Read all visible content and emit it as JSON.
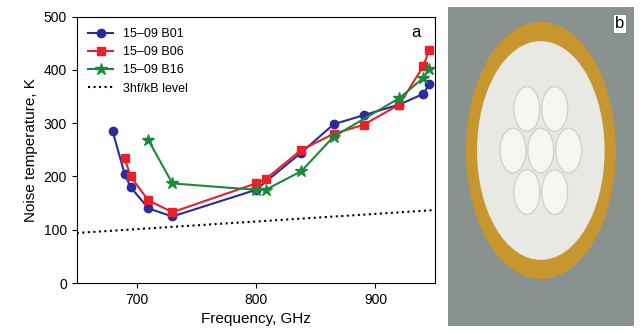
{
  "chart_data": {
    "type": "line",
    "annotations": [
      "a"
    ],
    "x_label": "Frequency, GHz",
    "y_label": "Noise temperature, K",
    "xlim": [
      650,
      950
    ],
    "xticks": [
      700,
      800,
      900
    ],
    "ylim": [
      0,
      500
    ],
    "yticks": [
      0,
      100,
      200,
      300,
      400,
      500
    ],
    "legend": "upper left",
    "series": [
      {
        "name": "15–09 B01",
        "color": "#2b2b9a",
        "marker": "circle",
        "line_style": "solid",
        "x": [
          680,
          690,
          695,
          710,
          730,
          800,
          838,
          865,
          890,
          920,
          940,
          945
        ],
        "values": [
          285,
          205,
          180,
          140,
          125,
          175,
          245,
          298,
          315,
          335,
          355,
          373
        ]
      },
      {
        "name": "15–09 B06",
        "color": "#e8202a",
        "marker": "square",
        "line_style": "solid",
        "x": [
          690,
          695,
          710,
          730,
          800,
          808,
          838,
          865,
          890,
          920,
          940,
          945
        ],
        "values": [
          235,
          200,
          155,
          133,
          187,
          195,
          250,
          280,
          297,
          335,
          407,
          438
        ]
      },
      {
        "name": "15–09 B16",
        "color": "#1a8a3a",
        "marker": "star",
        "line_style": "solid",
        "x": [
          710,
          730,
          800,
          808,
          838,
          865,
          920,
          940,
          945
        ],
        "values": [
          268,
          187,
          175,
          175,
          210,
          275,
          347,
          385,
          402
        ]
      },
      {
        "name": "3hf/kB level",
        "color": "#000000",
        "marker": "none",
        "line_style": "dotted",
        "x": [
          650,
          950
        ],
        "values": [
          94,
          137
        ]
      }
    ]
  },
  "photo": {
    "label": "b"
  }
}
